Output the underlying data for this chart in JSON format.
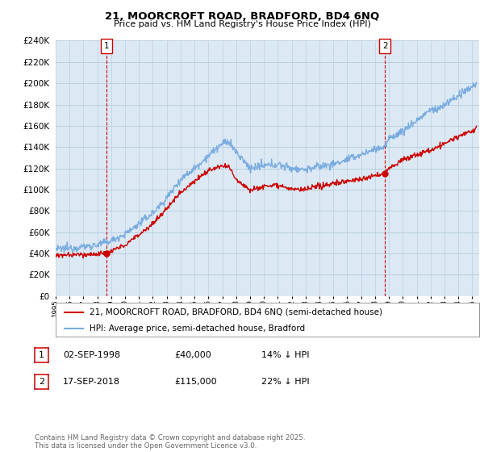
{
  "title": "21, MOORCROFT ROAD, BRADFORD, BD4 6NQ",
  "subtitle": "Price paid vs. HM Land Registry's House Price Index (HPI)",
  "ylim": [
    0,
    240000
  ],
  "ytick_step": 20000,
  "xlim_start": 1995.0,
  "xlim_end": 2025.5,
  "red_line_label": "21, MOORCROFT ROAD, BRADFORD, BD4 6NQ (semi-detached house)",
  "blue_line_label": "HPI: Average price, semi-detached house, Bradford",
  "transaction1_date_x": 1998.67,
  "transaction1_price": 40000,
  "transaction1_label": "1",
  "transaction2_date_x": 2018.71,
  "transaction2_price": 115000,
  "transaction2_label": "2",
  "footer": "Contains HM Land Registry data © Crown copyright and database right 2025.\nThis data is licensed under the Open Government Licence v3.0.",
  "table_rows": [
    [
      "1",
      "02-SEP-1998",
      "£40,000",
      "14% ↓ HPI"
    ],
    [
      "2",
      "17-SEP-2018",
      "£115,000",
      "22% ↓ HPI"
    ]
  ],
  "background_color": "#ffffff",
  "chart_bg_color": "#dce9f5",
  "grid_color": "#b8cfe0",
  "red_color": "#cc0000",
  "blue_color": "#7aace0",
  "dashed_color": "#cc0000",
  "hpi_years": [
    1995,
    1996,
    1997,
    1998,
    1999,
    2000,
    2001,
    2002,
    2003,
    2004,
    2005,
    2006,
    2007,
    2007.5,
    2008,
    2009,
    2010,
    2011,
    2012,
    2013,
    2014,
    2015,
    2016,
    2017,
    2018,
    2018.71,
    2019,
    2020,
    2021,
    2022,
    2022.5,
    2023,
    2024,
    2024.5,
    2025,
    2025.3
  ],
  "hpi_vals": [
    44000,
    45000,
    46500,
    48000,
    52000,
    58000,
    68000,
    78000,
    92000,
    110000,
    120000,
    132000,
    143000,
    145000,
    135000,
    120000,
    122000,
    124000,
    120000,
    119000,
    122000,
    124000,
    128000,
    133000,
    138000,
    140000,
    148000,
    155000,
    165000,
    175000,
    175000,
    180000,
    188000,
    192000,
    197000,
    200000
  ],
  "pp_years": [
    1995,
    1996,
    1997,
    1998,
    1998.67,
    1999,
    2000,
    2001,
    2002,
    2003,
    2004,
    2005,
    2006,
    2007,
    2007.5,
    2008,
    2009,
    2010,
    2011,
    2012,
    2013,
    2014,
    2015,
    2016,
    2017,
    2018,
    2018.71,
    2019,
    2020,
    2021,
    2022,
    2023,
    2024,
    2025,
    2025.3
  ],
  "pp_vals": [
    38000,
    38500,
    39000,
    39500,
    40000,
    42000,
    48000,
    58000,
    68000,
    82000,
    98000,
    108000,
    118000,
    122000,
    121000,
    110000,
    100000,
    103000,
    105000,
    100000,
    100000,
    103000,
    106000,
    108000,
    110000,
    113000,
    115000,
    120000,
    128000,
    133000,
    137000,
    143000,
    150000,
    155000,
    157000
  ]
}
